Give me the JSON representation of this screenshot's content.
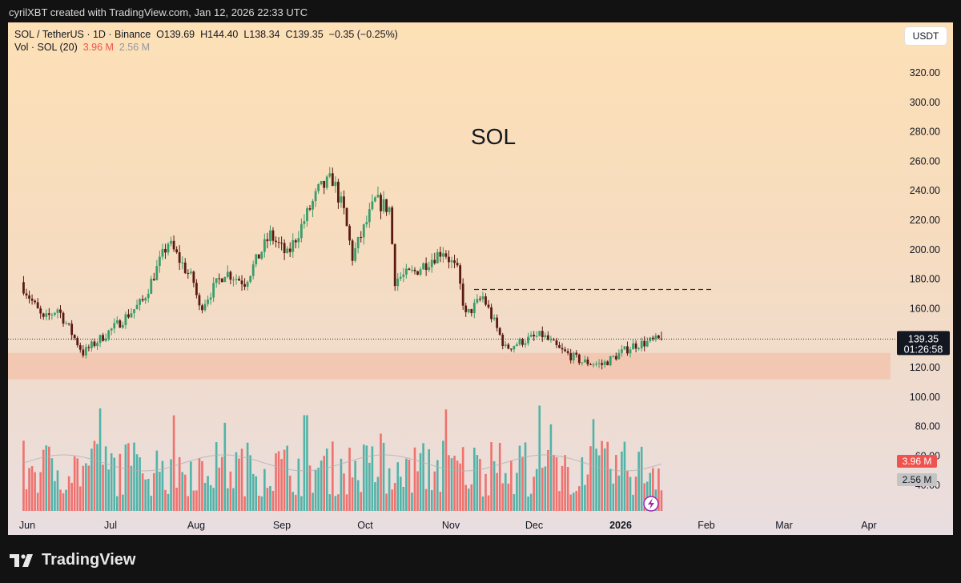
{
  "header": {
    "attribution": "cyrilXBT created with TradingView.com, Jan 12, 2026 22:33 UTC"
  },
  "legend": {
    "symbol_line": "SOL / TetherUS · 1D · Binance",
    "open": "O139.69",
    "high": "H144.40",
    "low": "L138.34",
    "close": "C139.35",
    "change": "−0.35 (−0.25%)",
    "volume_label": "Vol · SOL (20)",
    "volume_value": "3.96 M",
    "volume_ma": "2.56 M"
  },
  "currency_button": "USDT",
  "watermark_text": "SOL",
  "price_tag": {
    "price": "139.35",
    "countdown": "01:26:58"
  },
  "volume_tags": {
    "current": "3.96 M",
    "ma": "2.56 M"
  },
  "footer": {
    "brand": "TradingView"
  },
  "colors": {
    "up": "#26a69a",
    "down": "#ef5350",
    "zone": "#f3c4ae",
    "accent": "#9c27b0"
  },
  "chart_data": {
    "type": "candlestick",
    "title": "SOL",
    "y_axis": {
      "unit": "USDT",
      "ticks": [
        120,
        140,
        160,
        180,
        200,
        220,
        240,
        260,
        280,
        300,
        320
      ],
      "range": [
        120,
        330
      ]
    },
    "x_axis": {
      "ticks": [
        "Jun",
        "Jul",
        "Aug",
        "Sep",
        "Oct",
        "Nov",
        "Dec",
        "2026",
        "Feb",
        "Mar",
        "Apr"
      ]
    },
    "price_path": [
      [
        "2025-05-31",
        178
      ],
      [
        "2025-06-08",
        152
      ],
      [
        "2025-06-13",
        160
      ],
      [
        "2025-06-22",
        130
      ],
      [
        "2025-07-04",
        149
      ],
      [
        "2025-07-13",
        165
      ],
      [
        "2025-07-22",
        205
      ],
      [
        "2025-07-31",
        178
      ],
      [
        "2025-08-02",
        160
      ],
      [
        "2025-08-11",
        185
      ],
      [
        "2025-08-18",
        178
      ],
      [
        "2025-08-27",
        210
      ],
      [
        "2025-09-02",
        196
      ],
      [
        "2025-09-13",
        240
      ],
      [
        "2025-09-18",
        248
      ],
      [
        "2025-09-22",
        225
      ],
      [
        "2025-09-25",
        195
      ],
      [
        "2025-10-03",
        233
      ],
      [
        "2025-10-08",
        228
      ],
      [
        "2025-10-10",
        180
      ],
      [
        "2025-10-17",
        185
      ],
      [
        "2025-10-27",
        200
      ],
      [
        "2025-11-01",
        185
      ],
      [
        "2025-11-04",
        155
      ],
      [
        "2025-11-10",
        168
      ],
      [
        "2025-11-18",
        133
      ],
      [
        "2025-11-24",
        138
      ],
      [
        "2025-12-01",
        142
      ],
      [
        "2025-12-07",
        132
      ],
      [
        "2025-12-15",
        124
      ],
      [
        "2025-12-22",
        122
      ],
      [
        "2026-01-02",
        135
      ],
      [
        "2026-01-12",
        139.35
      ]
    ],
    "last_candle": {
      "open": 139.69,
      "high": 144.4,
      "low": 138.34,
      "close": 139.35
    },
    "resistance_level": 173,
    "support_zone": [
      112,
      130
    ],
    "volume": {
      "last": 3.96,
      "ma20": 2.56,
      "unit": "M"
    }
  }
}
